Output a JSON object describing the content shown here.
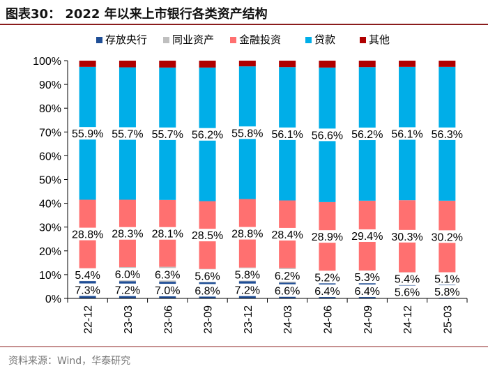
{
  "header": {
    "title": "图表30：  2022 年以来上市银行各类资产结构",
    "source": "资料来源：Wind，华泰研究"
  },
  "colors": {
    "存放央行": "#1f4e96",
    "同业资产": "#bfbfbf",
    "金融投资": "#ff7070",
    "贷款": "#00aee8",
    "其他": "#b00000",
    "axis": "#000000",
    "label_bg": "#ffffff"
  },
  "chart_data": {
    "type": "bar",
    "stacked": true,
    "title": "2022 年以来上市银行各类资产结构",
    "xlabel": "",
    "ylabel": "",
    "ylim": [
      0,
      100
    ],
    "yticks": [
      "0%",
      "10%",
      "20%",
      "30%",
      "40%",
      "50%",
      "60%",
      "70%",
      "80%",
      "90%",
      "100%"
    ],
    "legend_position": "top",
    "categories": [
      "22-12",
      "23-03",
      "23-06",
      "23-09",
      "23-12",
      "24-03",
      "24-06",
      "24-09",
      "24-12",
      "25-03"
    ],
    "series": [
      {
        "name": "存放央行",
        "values": [
          7.3,
          7.2,
          7.0,
          6.8,
          7.2,
          6.6,
          6.4,
          6.4,
          5.6,
          5.8
        ],
        "labels": [
          "7.3%",
          "7.2%",
          "7.0%",
          "6.8%",
          "7.2%",
          "6.6%",
          "6.4%",
          "6.4%",
          "5.6%",
          "5.8%"
        ]
      },
      {
        "name": "同业资产",
        "values": [
          5.4,
          6.0,
          6.3,
          5.6,
          5.8,
          6.2,
          5.2,
          5.3,
          5.4,
          5.1
        ],
        "labels": [
          "5.4%",
          "6.0%",
          "6.3%",
          "5.6%",
          "5.8%",
          "6.2%",
          "5.2%",
          "5.3%",
          "5.4%",
          "5.1%"
        ]
      },
      {
        "name": "金融投资",
        "values": [
          28.8,
          28.3,
          28.1,
          28.5,
          28.8,
          28.4,
          28.9,
          29.4,
          30.3,
          30.2
        ],
        "labels": [
          "28.8%",
          "28.3%",
          "28.1%",
          "28.5%",
          "28.8%",
          "28.4%",
          "28.9%",
          "29.4%",
          "30.3%",
          "30.2%"
        ]
      },
      {
        "name": "贷款",
        "values": [
          55.9,
          55.7,
          55.7,
          56.2,
          55.8,
          56.1,
          56.6,
          56.2,
          56.1,
          56.3
        ],
        "labels": [
          "55.9%",
          "55.7%",
          "55.7%",
          "56.2%",
          "55.8%",
          "56.1%",
          "56.6%",
          "56.2%",
          "56.1%",
          "56.3%"
        ]
      },
      {
        "name": "其他",
        "values": [
          2.6,
          2.8,
          2.9,
          2.9,
          2.4,
          2.7,
          2.9,
          2.7,
          2.6,
          2.6
        ],
        "labels": [
          "",
          "",
          "",
          "",
          "",
          "",
          "",
          "",
          "",
          ""
        ]
      }
    ]
  }
}
